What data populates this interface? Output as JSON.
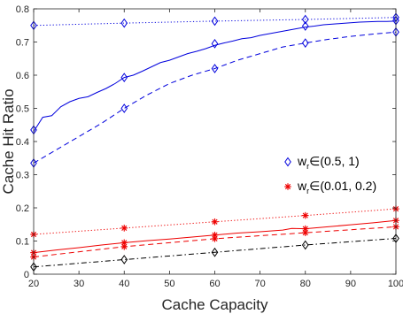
{
  "chart_data": {
    "type": "line",
    "xlabel": "Cache Capacity",
    "ylabel": "Cache Hit Ratio",
    "xlim": [
      20,
      100
    ],
    "ylim": [
      0,
      0.8
    ],
    "xticks": [
      20,
      30,
      40,
      50,
      60,
      70,
      80,
      90,
      100
    ],
    "yticks": [
      0,
      0.1,
      0.2,
      0.3,
      0.4,
      0.5,
      0.6,
      0.7,
      0.8
    ],
    "xtick_labels": [
      "20",
      "30",
      "40",
      "50",
      "60",
      "70",
      "80",
      "90",
      "100"
    ],
    "ytick_labels": [
      "0",
      "0.1",
      "0.2",
      "0.3",
      "0.4",
      "0.5",
      "0.6",
      "0.7",
      "0.8"
    ],
    "grid": false,
    "legend": {
      "placement": "right",
      "entries": [
        {
          "prefix": "w",
          "sub": "r",
          "suffix": "∈(0.5, 1)",
          "color": "#0000dd",
          "marker": "diamond"
        },
        {
          "prefix": "w",
          "sub": "r",
          "suffix": "∈(0.01, 0.2)",
          "color": "#ee0000",
          "marker": "star"
        }
      ]
    },
    "series": [
      {
        "group": "blue",
        "color": "#0000dd",
        "linestyle": "dotted",
        "marker": "diamond",
        "x": [
          20,
          40,
          60,
          80,
          100
        ],
        "y": [
          0.75,
          0.757,
          0.763,
          0.768,
          0.774
        ],
        "marker_x": [
          20,
          40,
          60,
          80,
          100
        ],
        "marker_y": [
          0.75,
          0.757,
          0.763,
          0.768,
          0.774
        ]
      },
      {
        "group": "blue",
        "color": "#0000dd",
        "linestyle": "solid",
        "marker": "diamond",
        "x": [
          20,
          22,
          24,
          26,
          28,
          30,
          32,
          34,
          36,
          38,
          40,
          42,
          44,
          46,
          48,
          50,
          52,
          54,
          56,
          58,
          60,
          62,
          64,
          66,
          68,
          70,
          72,
          74,
          76,
          78,
          80,
          82,
          84,
          86,
          88,
          90,
          92,
          94,
          96,
          98,
          100
        ],
        "y": [
          0.43,
          0.473,
          0.478,
          0.505,
          0.52,
          0.53,
          0.535,
          0.548,
          0.56,
          0.575,
          0.593,
          0.6,
          0.612,
          0.625,
          0.638,
          0.645,
          0.655,
          0.665,
          0.672,
          0.68,
          0.69,
          0.697,
          0.703,
          0.71,
          0.713,
          0.72,
          0.725,
          0.73,
          0.735,
          0.74,
          0.745,
          0.748,
          0.752,
          0.754,
          0.756,
          0.758,
          0.76,
          0.761,
          0.762,
          0.762,
          0.763
        ],
        "marker_x": [
          20,
          40,
          60,
          80,
          100
        ],
        "marker_y": [
          0.435,
          0.593,
          0.695,
          0.748,
          0.765
        ]
      },
      {
        "group": "blue",
        "color": "#0000dd",
        "linestyle": "dashed",
        "marker": "diamond",
        "x": [
          20,
          25,
          30,
          35,
          40,
          45,
          50,
          55,
          60,
          65,
          70,
          75,
          80,
          85,
          90,
          95,
          100
        ],
        "y": [
          0.335,
          0.375,
          0.415,
          0.455,
          0.5,
          0.54,
          0.575,
          0.6,
          0.62,
          0.645,
          0.665,
          0.685,
          0.697,
          0.708,
          0.717,
          0.724,
          0.73
        ],
        "marker_x": [
          20,
          40,
          60,
          80,
          100
        ],
        "marker_y": [
          0.335,
          0.5,
          0.62,
          0.697,
          0.73
        ]
      },
      {
        "group": "red",
        "color": "#ee0000",
        "linestyle": "dotted",
        "marker": "star",
        "x": [
          20,
          40,
          60,
          80,
          100
        ],
        "y": [
          0.12,
          0.139,
          0.158,
          0.177,
          0.197
        ],
        "marker_x": [
          20,
          40,
          60,
          80,
          100
        ],
        "marker_y": [
          0.12,
          0.139,
          0.158,
          0.177,
          0.197
        ]
      },
      {
        "group": "red",
        "color": "#ee0000",
        "linestyle": "solid",
        "marker": "star",
        "x": [
          20,
          25,
          30,
          35,
          40,
          45,
          50,
          55,
          60,
          65,
          70,
          75,
          77,
          80,
          85,
          90,
          95,
          100
        ],
        "y": [
          0.065,
          0.073,
          0.08,
          0.088,
          0.095,
          0.101,
          0.106,
          0.112,
          0.118,
          0.124,
          0.128,
          0.133,
          0.138,
          0.137,
          0.143,
          0.149,
          0.155,
          0.162
        ],
        "marker_x": [
          20,
          40,
          60,
          80,
          100
        ],
        "marker_y": [
          0.065,
          0.095,
          0.118,
          0.137,
          0.162
        ]
      },
      {
        "group": "red",
        "color": "#ee0000",
        "linestyle": "dashed",
        "marker": "star",
        "x": [
          20,
          40,
          60,
          80,
          100
        ],
        "y": [
          0.052,
          0.083,
          0.107,
          0.125,
          0.143
        ],
        "marker_x": [
          20,
          40,
          60,
          80,
          100
        ],
        "marker_y": [
          0.052,
          0.083,
          0.107,
          0.125,
          0.143
        ]
      },
      {
        "group": "black",
        "color": "#000000",
        "linestyle": "dashdot",
        "marker": "diamond",
        "x": [
          20,
          40,
          60,
          80,
          100
        ],
        "y": [
          0.022,
          0.044,
          0.066,
          0.088,
          0.108
        ],
        "marker_x": [
          20,
          40,
          60,
          80,
          100
        ],
        "marker_y": [
          0.022,
          0.044,
          0.066,
          0.088,
          0.108
        ]
      }
    ]
  }
}
